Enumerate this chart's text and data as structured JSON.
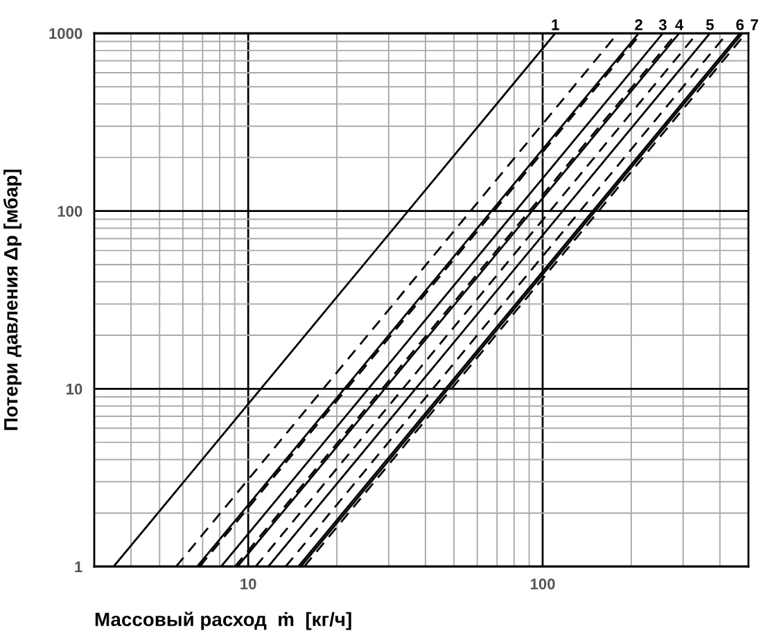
{
  "chart_data": {
    "type": "line",
    "xlabel": "Массовый расход  ṁ  [кг/ч]",
    "ylabel": "Потери давления Δp [мбар]",
    "log": "xy",
    "grid": true,
    "marker": "none",
    "xlim": [
      3,
      500
    ],
    "ylim": [
      1,
      1000
    ],
    "xticks": [
      10,
      100
    ],
    "yticks": [
      1,
      10,
      100,
      1000
    ],
    "series": [
      {
        "name": "1",
        "color": "#000000",
        "line_style": "solid",
        "x": [
          3.49,
          110.4
        ],
        "values": [
          1,
          1000
        ]
      },
      {
        "color": "#000000",
        "line_style": "dashed",
        "x": [
          5.69,
          180
        ],
        "values": [
          1,
          1000
        ]
      },
      {
        "name": "2",
        "color": "#000000",
        "line_style": "solid",
        "x": [
          6.71,
          212
        ],
        "values": [
          1,
          1000
        ]
      },
      {
        "color": "#000000",
        "line_style": "dashed",
        "x": [
          6.84,
          216
        ],
        "values": [
          1,
          1000
        ]
      },
      {
        "name": "3",
        "color": "#000000",
        "line_style": "solid",
        "x": [
          8.09,
          256
        ],
        "values": [
          1,
          1000
        ]
      },
      {
        "color": "#000000",
        "line_style": "dashed",
        "x": [
          9.02,
          285
        ],
        "values": [
          1,
          1000
        ]
      },
      {
        "name": "4",
        "color": "#000000",
        "line_style": "solid",
        "x": [
          9.2,
          291
        ],
        "values": [
          1,
          1000
        ]
      },
      {
        "color": "#000000",
        "line_style": "dashed",
        "x": [
          10.6,
          335
        ],
        "values": [
          1,
          1000
        ]
      },
      {
        "name": "5",
        "color": "#000000",
        "line_style": "solid",
        "x": [
          11.7,
          370
        ],
        "values": [
          1,
          1000
        ]
      },
      {
        "color": "#000000",
        "line_style": "dashed",
        "x": [
          13.4,
          424
        ],
        "values": [
          1,
          1000
        ]
      },
      {
        "name": "6",
        "color": "#000000",
        "line_style": "solid",
        "x": [
          14.8,
          468
        ],
        "values": [
          1,
          1000
        ]
      },
      {
        "name": "7",
        "color": "#000000",
        "line_style": "solid",
        "x": [
          15.1,
          477
        ],
        "values": [
          1,
          1000
        ]
      },
      {
        "color": "#000000",
        "line_style": "dashed",
        "x": [
          15.5,
          490
        ],
        "values": [
          1,
          1000
        ]
      }
    ]
  }
}
